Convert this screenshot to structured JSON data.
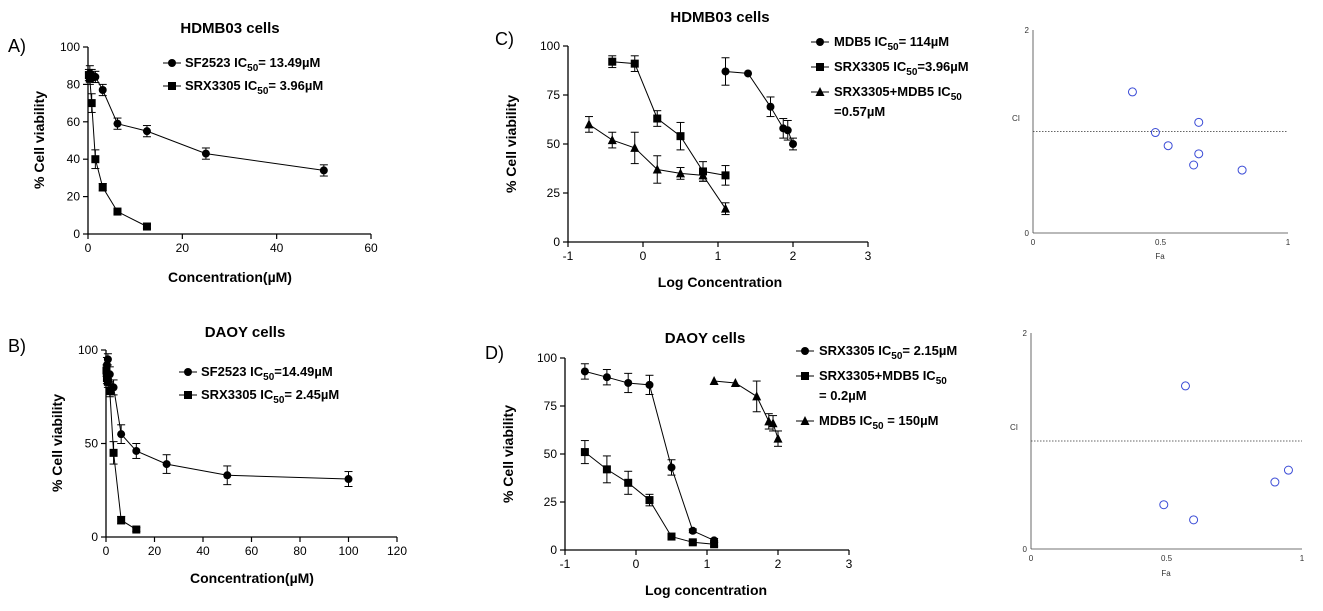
{
  "panel_labels": [
    "A)",
    "B)",
    "C)",
    "D)"
  ],
  "chart_data": [
    {
      "id": "A",
      "type": "line",
      "title": "HDMB03 cells",
      "xlabel": "Concentration(µM)",
      "ylabel": "% Cell viability",
      "xlim": [
        0,
        60
      ],
      "ylim": [
        0,
        100
      ],
      "xticks": [
        0,
        20,
        40,
        60
      ],
      "yticks": [
        0,
        20,
        40,
        60,
        80,
        100
      ],
      "series": [
        {
          "name_main": "SF2523 IC",
          "name_sub": "50",
          "name_rest": "= 13.49µM",
          "marker": "circle",
          "x": [
            0.39,
            0.78,
            1.56,
            3.12,
            6.25,
            12.5,
            25,
            50
          ],
          "y": [
            86,
            85,
            84,
            77,
            59,
            55,
            43,
            34
          ],
          "err": [
            4,
            3,
            3,
            3,
            3,
            3,
            3,
            3
          ]
        },
        {
          "name_main": "SRX3305 IC",
          "name_sub": "50",
          "name_rest": "= 3.96µM",
          "marker": "square",
          "x": [
            0.19,
            0.39,
            0.78,
            1.56,
            3.12,
            6.25,
            12.5
          ],
          "y": [
            85,
            83,
            70,
            40,
            25,
            12,
            4
          ],
          "err": [
            3,
            3,
            5,
            5,
            2,
            1,
            1
          ]
        }
      ]
    },
    {
      "id": "B",
      "type": "line",
      "title": "DAOY cells",
      "xlabel": "Concentration(µM)",
      "ylabel": "% Cell viability",
      "xlim": [
        0,
        120
      ],
      "ylim": [
        0,
        100
      ],
      "xticks": [
        0,
        20,
        40,
        60,
        80,
        100,
        120
      ],
      "yticks": [
        0,
        50,
        100
      ],
      "series": [
        {
          "name_main": "SF2523 IC",
          "name_sub": "50",
          "name_rest": "=14.49µM",
          "marker": "circle",
          "x": [
            0.39,
            0.78,
            1.56,
            3.12,
            6.25,
            12.5,
            25,
            50,
            100
          ],
          "y": [
            92,
            95,
            87,
            80,
            55,
            46,
            39,
            33,
            31
          ],
          "err": [
            4,
            3,
            4,
            4,
            5,
            4,
            5,
            5,
            4
          ]
        },
        {
          "name_main": "SRX3305 IC",
          "name_sub": "50",
          "name_rest": "= 2.45µM",
          "marker": "square",
          "x": [
            0.19,
            0.39,
            0.78,
            1.56,
            3.12,
            6.25,
            12.5
          ],
          "y": [
            89,
            85,
            83,
            78,
            45,
            9,
            4
          ],
          "err": [
            3,
            3,
            3,
            3,
            6,
            2,
            1
          ]
        }
      ]
    },
    {
      "id": "C",
      "type": "line",
      "title": "HDMB03 cells",
      "xlabel": "Log Concentration",
      "ylabel": "% Cell viability",
      "xlim": [
        -1,
        3
      ],
      "ylim": [
        0,
        100
      ],
      "xticks": [
        -1,
        0,
        1,
        2,
        3
      ],
      "yticks": [
        0,
        25,
        50,
        75,
        100
      ],
      "series": [
        {
          "name_main": "MDB5 IC",
          "name_sub": "50",
          "name_rest": "= 114µM",
          "marker": "circle",
          "x": [
            1.1,
            1.4,
            1.7,
            1.87,
            1.93,
            2.0
          ],
          "y": [
            87,
            86,
            69,
            58,
            57,
            50
          ],
          "err": [
            7,
            0,
            5,
            5,
            5,
            3
          ]
        },
        {
          "name_main": "SRX3305 IC",
          "name_sub": "50",
          "name_rest": "=3.96µM",
          "marker": "square",
          "x": [
            -0.41,
            -0.11,
            0.19,
            0.5,
            0.8,
            1.1
          ],
          "y": [
            92,
            91,
            63,
            54,
            36,
            34
          ],
          "err": [
            3,
            4,
            4,
            7,
            5,
            5
          ]
        },
        {
          "name_main": "SRX3305+MDB5 IC",
          "name_sub": "50",
          "name_line2": "=0.57µM",
          "marker": "triangle",
          "x": [
            -0.72,
            -0.41,
            -0.11,
            0.19,
            0.5,
            0.8,
            1.1
          ],
          "y": [
            60,
            52,
            48,
            37,
            35,
            34,
            17
          ],
          "err": [
            4,
            4,
            8,
            7,
            3,
            3,
            3
          ]
        }
      ]
    },
    {
      "id": "D",
      "type": "line",
      "title": "DAOY cells",
      "xlabel": "Log concentration",
      "ylabel": "% Cell viability",
      "xlim": [
        -1,
        3
      ],
      "ylim": [
        0,
        100
      ],
      "xticks": [
        -1,
        0,
        1,
        2,
        3
      ],
      "yticks": [
        0,
        25,
        50,
        75,
        100
      ],
      "series": [
        {
          "name_main": "SRX3305 IC",
          "name_sub": "50",
          "name_rest": "= 2.15µM",
          "marker": "circle",
          "x": [
            -0.72,
            -0.41,
            -0.11,
            0.19,
            0.5,
            0.8,
            1.1
          ],
          "y": [
            93,
            90,
            87,
            86,
            43,
            10,
            5
          ],
          "err": [
            4,
            4,
            5,
            5,
            4,
            1,
            1
          ]
        },
        {
          "name_main": "SRX3305+MDB5 IC",
          "name_sub": "50",
          "name_line2": "= 0.2µM",
          "marker": "square",
          "x": [
            -0.72,
            -0.41,
            -0.11,
            0.19,
            0.5,
            0.8,
            1.1
          ],
          "y": [
            51,
            42,
            35,
            26,
            7,
            4,
            3
          ],
          "err": [
            6,
            7,
            6,
            3,
            1,
            1,
            1
          ]
        },
        {
          "name_main": "MDB5 IC",
          "name_sub": "50",
          "name_rest": " = 150µM",
          "marker": "triangle",
          "x": [
            1.1,
            1.4,
            1.7,
            1.87,
            1.93,
            2.0
          ],
          "y": [
            88,
            87,
            80,
            67,
            66,
            58
          ],
          "err": [
            0,
            0,
            8,
            4,
            4,
            4
          ]
        }
      ]
    },
    {
      "id": "CI-top",
      "type": "scatter",
      "xlabel": "Fa",
      "ylabel": "CI",
      "xlim": [
        0,
        1
      ],
      "ylim": [
        0,
        2
      ],
      "xticks": [
        "0",
        "0.5",
        "1"
      ],
      "yticks": [
        "0",
        "2"
      ],
      "reference_line": 1,
      "points": [
        [
          0.39,
          1.39
        ],
        [
          0.48,
          0.99
        ],
        [
          0.53,
          0.86
        ],
        [
          0.63,
          0.67
        ],
        [
          0.65,
          1.09
        ],
        [
          0.65,
          0.78
        ],
        [
          0.82,
          0.62
        ]
      ]
    },
    {
      "id": "CI-bottom",
      "type": "scatter",
      "xlabel": "Fa",
      "ylabel": "CI",
      "xlim": [
        0,
        1
      ],
      "ylim": [
        0,
        2
      ],
      "xticks": [
        "0",
        "0.5",
        "1"
      ],
      "yticks": [
        "0",
        "2"
      ],
      "reference_line": 1,
      "points": [
        [
          0.57,
          1.51
        ],
        [
          0.49,
          0.41
        ],
        [
          0.6,
          0.27
        ],
        [
          0.9,
          0.62
        ],
        [
          0.95,
          0.73
        ]
      ]
    }
  ]
}
